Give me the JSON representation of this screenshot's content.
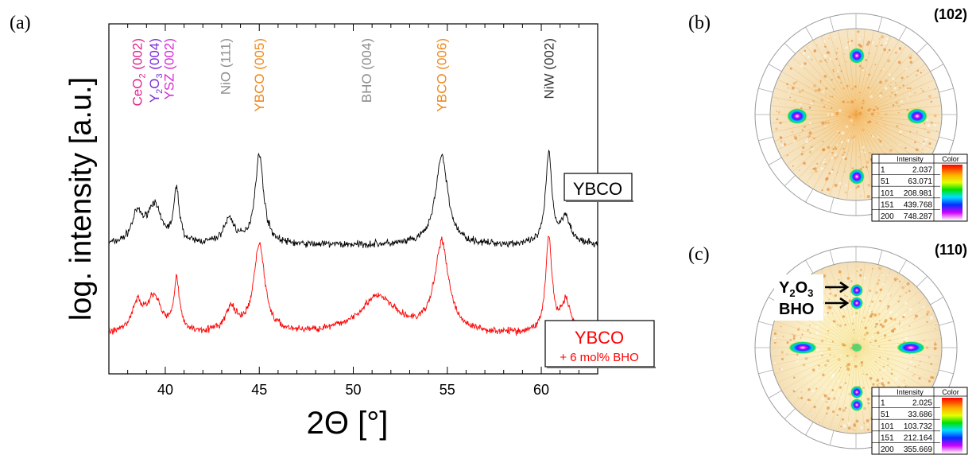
{
  "panels": {
    "a": "(a)",
    "b": "(b)",
    "c": "(c)"
  },
  "chart_data": {
    "type": "line",
    "xlabel": "2Θ [°]",
    "ylabel": "log. intensity [a.u.]",
    "xlim": [
      37,
      63
    ],
    "xticks": [
      40,
      45,
      50,
      55,
      60
    ],
    "x_tick_labels": [
      "40",
      "45",
      "50",
      "55",
      "60"
    ],
    "y_scale": "log",
    "peak_labels": [
      {
        "text": "CeO",
        "sub": "2",
        "rest": " (002)",
        "x": 38.5,
        "color": "#e0228f"
      },
      {
        "text": "Y",
        "sub": "2",
        "text2": "O",
        "sub2": "3",
        "rest": " (004)",
        "x": 39.4,
        "color": "#7a2dd6"
      },
      {
        "text": "YSZ (002)",
        "x": 40.2,
        "color": "#d62cd6"
      },
      {
        "text": "NiO (111)",
        "x": 43.2,
        "color": "#8c8c8c"
      },
      {
        "text": "YBCO (005)",
        "x": 45.0,
        "color": "#f08a1c"
      },
      {
        "text": "BHO (004)",
        "x": 50.7,
        "color": "#8c8c8c"
      },
      {
        "text": "YBCO (006)",
        "x": 54.7,
        "color": "#f08a1c"
      },
      {
        "text": "NiW (002)",
        "x": 60.4,
        "color": "#333333"
      }
    ],
    "series": [
      {
        "name": "YBCO",
        "color": "#000000",
        "baseline": 0.32,
        "peaks": [
          {
            "x": 38.5,
            "h": 0.45,
            "w": 0.35
          },
          {
            "x": 39.4,
            "h": 0.62,
            "w": 0.45
          },
          {
            "x": 40.6,
            "h": 0.85,
            "w": 0.18
          },
          {
            "x": 43.4,
            "h": 0.4,
            "w": 0.35
          },
          {
            "x": 45.0,
            "h": 1.45,
            "w": 0.28
          },
          {
            "x": 54.7,
            "h": 1.45,
            "w": 0.4
          },
          {
            "x": 60.4,
            "h": 1.48,
            "w": 0.2
          },
          {
            "x": 61.3,
            "h": 0.45,
            "w": 0.3
          }
        ]
      },
      {
        "name": "YBCO + 6 mol% BHO",
        "color": "#ff0000",
        "baseline": 0.3,
        "peaks": [
          {
            "x": 38.5,
            "h": 0.45,
            "w": 0.35
          },
          {
            "x": 39.4,
            "h": 0.58,
            "w": 0.45
          },
          {
            "x": 40.6,
            "h": 0.85,
            "w": 0.18
          },
          {
            "x": 43.5,
            "h": 0.38,
            "w": 0.35
          },
          {
            "x": 45.0,
            "h": 1.45,
            "w": 0.35
          },
          {
            "x": 51.3,
            "h": 0.6,
            "w": 1.2
          },
          {
            "x": 54.7,
            "h": 1.45,
            "w": 0.45
          },
          {
            "x": 60.4,
            "h": 1.55,
            "w": 0.2
          },
          {
            "x": 61.3,
            "h": 0.5,
            "w": 0.3
          }
        ]
      }
    ],
    "legend": [
      {
        "label": "YBCO",
        "color": "#000000"
      },
      {
        "label": "YBCO",
        "sub": "+ 6 mol% BHO",
        "color": "#ff0000"
      }
    ]
  },
  "pole_figures": [
    {
      "label": "(102)",
      "spots": [
        [
          0,
          -1
        ],
        [
          -1,
          0
        ],
        [
          1,
          0
        ],
        [
          0,
          1
        ]
      ],
      "table": {
        "headers": [
          "",
          "Intensity",
          "Color"
        ],
        "rows": [
          [
            "1",
            "2.037"
          ],
          [
            "51",
            "63.071"
          ],
          [
            "101",
            "208.981"
          ],
          [
            "151",
            "439.768"
          ],
          [
            "200",
            "748.287"
          ]
        ]
      }
    },
    {
      "label": "(110)",
      "annotations": [
        "Y2O3",
        "BHO"
      ],
      "table": {
        "headers": [
          "",
          "Intensity",
          "Color"
        ],
        "rows": [
          [
            "1",
            "2.025"
          ],
          [
            "51",
            "33.686"
          ],
          [
            "101",
            "103.732"
          ],
          [
            "151",
            "212.164"
          ],
          [
            "200",
            "355.669"
          ]
        ]
      }
    }
  ]
}
